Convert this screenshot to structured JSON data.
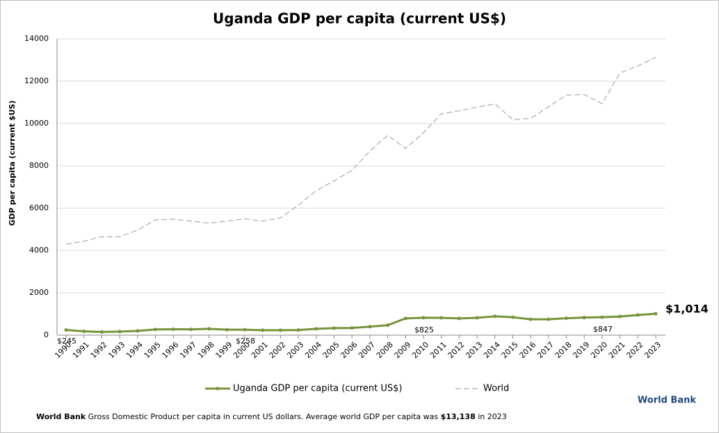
{
  "chart_data": {
    "type": "line",
    "title": "Uganda GDP per capita (current US$)",
    "y_label": "GDP per capita (current $US)",
    "categories": [
      "1990",
      "1991",
      "1992",
      "1993",
      "1994",
      "1995",
      "1996",
      "1997",
      "1998",
      "1999",
      "2000",
      "2001",
      "2002",
      "2003",
      "2004",
      "2005",
      "2006",
      "2007",
      "2008",
      "2009",
      "2010",
      "2011",
      "2012",
      "2013",
      "2014",
      "2015",
      "2016",
      "2017",
      "2018",
      "2019",
      "2020",
      "2021",
      "2022",
      "2023"
    ],
    "series": [
      {
        "name": "Uganda GDP per capita (current US$)",
        "color": "#77933c",
        "style": "solid",
        "values": [
          245,
          180,
          150,
          170,
          200,
          270,
          280,
          275,
          300,
          260,
          258,
          235,
          235,
          240,
          300,
          330,
          340,
          400,
          470,
          790,
          825,
          820,
          790,
          820,
          890,
          850,
          750,
          750,
          800,
          830,
          847,
          880,
          950,
          1014
        ],
        "value_labels": [
          "$245",
          null,
          null,
          null,
          null,
          null,
          null,
          null,
          null,
          null,
          "$258",
          null,
          null,
          null,
          null,
          null,
          null,
          null,
          null,
          null,
          "$825",
          null,
          null,
          null,
          null,
          null,
          null,
          null,
          null,
          null,
          "$847",
          null,
          null,
          "$1,014"
        ]
      },
      {
        "name": "World",
        "color": "#999999",
        "style": "dashed",
        "values": [
          4300,
          4440,
          4650,
          4650,
          4960,
          5450,
          5480,
          5390,
          5290,
          5390,
          5500,
          5390,
          5540,
          6140,
          6830,
          7290,
          7790,
          8700,
          9440,
          8820,
          9560,
          10460,
          10600,
          10770,
          10930,
          10180,
          10240,
          10790,
          11340,
          11370,
          10940,
          12390,
          12720,
          13138
        ]
      }
    ],
    "ylim": [
      0,
      14000
    ],
    "yticks": [
      0,
      2000,
      4000,
      6000,
      8000,
      10000,
      12000,
      14000
    ],
    "grid": true,
    "legend": "bottom",
    "brand": "World Bank",
    "footnote": {
      "source": "World Bank",
      "text": "Gross Domestic Product per capita in current US dollars.  Average world GDP per capita was",
      "value": "$13,138",
      "suffix": "in 2023"
    }
  }
}
